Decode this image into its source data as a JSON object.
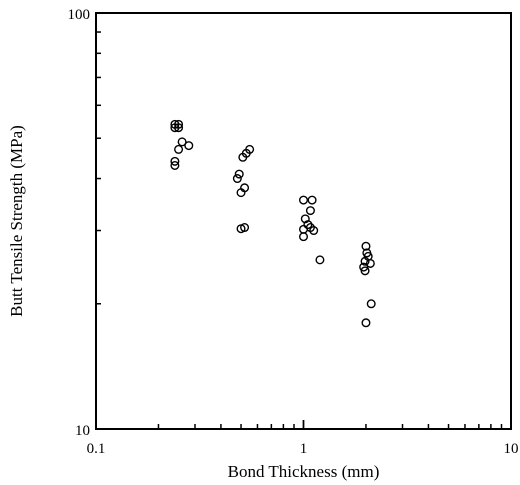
{
  "chart_data": {
    "type": "scatter",
    "xlabel": "Bond Thickness (mm)",
    "ylabel": "Butt Tensile Strength (MPa)",
    "x_scale": "log",
    "y_scale": "log",
    "xlim": [
      0.1,
      10
    ],
    "ylim": [
      10,
      100
    ],
    "x_ticks": [
      "0.1",
      "1",
      "10"
    ],
    "y_ticks": [
      "10",
      "100"
    ],
    "grid": false,
    "marker": "open-circle",
    "series": [
      {
        "points": [
          {
            "x": 0.24,
            "y": 54
          },
          {
            "x": 0.25,
            "y": 54
          },
          {
            "x": 0.24,
            "y": 53
          },
          {
            "x": 0.25,
            "y": 53
          },
          {
            "x": 0.26,
            "y": 49
          },
          {
            "x": 0.28,
            "y": 48
          },
          {
            "x": 0.25,
            "y": 47
          },
          {
            "x": 0.24,
            "y": 44
          },
          {
            "x": 0.24,
            "y": 43
          },
          {
            "x": 0.55,
            "y": 47
          },
          {
            "x": 0.53,
            "y": 46
          },
          {
            "x": 0.51,
            "y": 45
          },
          {
            "x": 0.49,
            "y": 41
          },
          {
            "x": 0.48,
            "y": 40
          },
          {
            "x": 0.52,
            "y": 38
          },
          {
            "x": 0.5,
            "y": 37
          },
          {
            "x": 0.52,
            "y": 30.5
          },
          {
            "x": 0.5,
            "y": 30.3
          },
          {
            "x": 1.0,
            "y": 35.5
          },
          {
            "x": 1.1,
            "y": 35.5
          },
          {
            "x": 1.08,
            "y": 33.5
          },
          {
            "x": 1.02,
            "y": 32
          },
          {
            "x": 1.05,
            "y": 31
          },
          {
            "x": 1.08,
            "y": 30.5
          },
          {
            "x": 1.0,
            "y": 30.2
          },
          {
            "x": 1.12,
            "y": 30
          },
          {
            "x": 1.0,
            "y": 29
          },
          {
            "x": 1.2,
            "y": 25.5
          },
          {
            "x": 2.0,
            "y": 27.5
          },
          {
            "x": 2.02,
            "y": 26.5
          },
          {
            "x": 2.05,
            "y": 26
          },
          {
            "x": 1.98,
            "y": 25.3
          },
          {
            "x": 2.1,
            "y": 25
          },
          {
            "x": 1.95,
            "y": 24.5
          },
          {
            "x": 1.98,
            "y": 24
          },
          {
            "x": 2.12,
            "y": 20
          },
          {
            "x": 2.0,
            "y": 18
          }
        ]
      }
    ]
  }
}
